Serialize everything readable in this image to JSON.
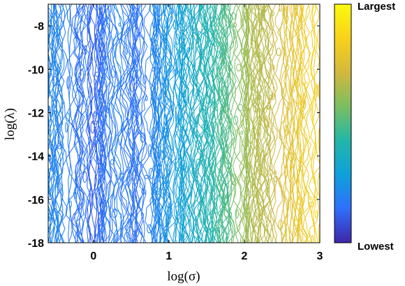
{
  "chart_data": {
    "type": "contour",
    "xlabel": "log(σ)",
    "ylabel": "log(λ)",
    "xlim": [
      -0.6,
      3.0
    ],
    "ylim": [
      -18,
      -7
    ],
    "x_ticks": [
      0,
      1,
      2,
      3
    ],
    "y_ticks": [
      -18,
      -16,
      -14,
      -12,
      -10,
      -8
    ],
    "x_tick_labels": [
      "0",
      "1",
      "2",
      "3"
    ],
    "y_tick_labels": [
      "-18",
      "-16",
      "-14",
      "-12",
      "-10",
      "-8"
    ],
    "colorbar": {
      "top_label": "Largest",
      "bottom_label": "Lowest",
      "colormap": [
        "#3e26a8",
        "#2f6ffb",
        "#0fa0db",
        "#23b6a8",
        "#7bbe60",
        "#d3b83f",
        "#f9d21a",
        "#f9fb0e"
      ]
    },
    "value_profile": {
      "x": [
        -0.6,
        -0.3,
        0.0,
        0.3,
        0.6,
        0.9,
        1.2,
        1.5,
        1.8,
        2.0,
        2.3,
        2.6,
        2.9,
        3.0
      ],
      "level": [
        0.22,
        0.18,
        0.12,
        0.2,
        0.14,
        0.24,
        0.3,
        0.4,
        0.52,
        0.62,
        0.68,
        0.76,
        0.83,
        0.86
      ]
    }
  }
}
